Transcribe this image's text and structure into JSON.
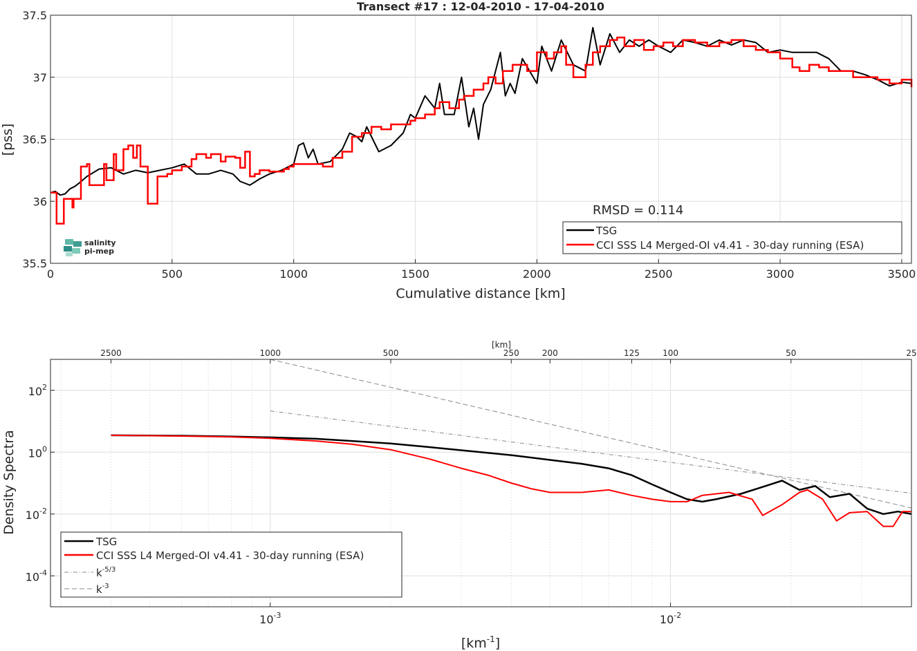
{
  "chart_data": [
    {
      "type": "line",
      "title": "Transect #17 : 12-04-2010 - 17-04-2010",
      "xlabel": "Cumulative distance [km]",
      "ylabel": "[pss]",
      "xlim": [
        0,
        3540
      ],
      "ylim": [
        35.5,
        37.5
      ],
      "xticks": [
        "0",
        "500",
        "1000",
        "1500",
        "2000",
        "2500",
        "3000",
        "3500"
      ],
      "yticks": [
        "35.5",
        "36",
        "36.5",
        "37",
        "37.5"
      ],
      "grid": true,
      "legend_position": "bottom-right",
      "annotation": "RMSD = 0.114",
      "logo": [
        "salinity",
        "pi-mep"
      ],
      "colors": {
        "TSG": "#000000",
        "CCI": "#ff0000"
      },
      "series": [
        {
          "name": "TSG",
          "x": [
            0,
            20,
            40,
            60,
            80,
            100,
            120,
            150,
            200,
            250,
            300,
            350,
            400,
            450,
            500,
            550,
            600,
            650,
            700,
            750,
            780,
            820,
            860,
            900,
            950,
            1000,
            1020,
            1040,
            1060,
            1080,
            1100,
            1150,
            1200,
            1230,
            1260,
            1280,
            1300,
            1350,
            1400,
            1450,
            1480,
            1500,
            1540,
            1580,
            1600,
            1620,
            1660,
            1690,
            1720,
            1740,
            1760,
            1780,
            1810,
            1850,
            1870,
            1890,
            1910,
            1940,
            1970,
            2000,
            2020,
            2060,
            2100,
            2150,
            2200,
            2230,
            2260,
            2300,
            2340,
            2380,
            2420,
            2460,
            2500,
            2550,
            2600,
            2650,
            2700,
            2750,
            2800,
            2850,
            2900,
            2950,
            3000,
            3050,
            3100,
            3150,
            3200,
            3250,
            3300,
            3350,
            3400,
            3450,
            3500,
            3540
          ],
          "y": [
            36.07,
            36.08,
            36.05,
            36.06,
            36.1,
            36.12,
            36.15,
            36.2,
            36.26,
            36.27,
            36.22,
            36.25,
            36.23,
            36.25,
            36.27,
            36.3,
            36.22,
            36.22,
            36.25,
            36.22,
            36.16,
            36.13,
            36.18,
            36.22,
            36.25,
            36.3,
            36.45,
            36.47,
            36.35,
            36.42,
            36.3,
            36.32,
            36.42,
            36.55,
            36.52,
            36.48,
            36.6,
            36.4,
            36.45,
            36.55,
            36.7,
            36.67,
            36.85,
            36.75,
            36.95,
            36.7,
            36.7,
            37.0,
            36.6,
            36.75,
            36.5,
            36.78,
            36.9,
            37.2,
            36.85,
            36.95,
            36.87,
            37.15,
            37.05,
            36.95,
            37.25,
            37.05,
            37.3,
            37.1,
            37.05,
            37.4,
            37.1,
            37.35,
            37.2,
            37.3,
            37.25,
            37.3,
            37.25,
            37.2,
            37.3,
            37.28,
            37.25,
            37.3,
            37.26,
            37.3,
            37.28,
            37.2,
            37.22,
            37.2,
            37.2,
            37.2,
            37.15,
            37.05,
            37.05,
            37.02,
            36.98,
            36.93,
            36.96,
            36.95
          ]
        },
        {
          "name": "CCI SSS L4 Merged-OI v4.41 - 30-day running (ESA)",
          "x": [
            0,
            20,
            25,
            50,
            55,
            90,
            95,
            120,
            125,
            150,
            160,
            200,
            220,
            230,
            260,
            270,
            280,
            300,
            320,
            340,
            355,
            370,
            380,
            400,
            420,
            440,
            480,
            500,
            540,
            580,
            600,
            640,
            660,
            700,
            720,
            740,
            760,
            780,
            800,
            820,
            840,
            860,
            900,
            940,
            960,
            980,
            1000,
            1040,
            1080,
            1120,
            1160,
            1200,
            1240,
            1280,
            1320,
            1340,
            1360,
            1400,
            1440,
            1480,
            1500,
            1540,
            1580,
            1600,
            1640,
            1680,
            1700,
            1740,
            1780,
            1800,
            1830,
            1860,
            1900,
            1930,
            1960,
            2000,
            2040,
            2070,
            2100,
            2120,
            2150,
            2180,
            2200,
            2230,
            2260,
            2300,
            2330,
            2360,
            2400,
            2440,
            2480,
            2520,
            2560,
            2600,
            2650,
            2700,
            2750,
            2800,
            2850,
            2900,
            2950,
            3000,
            3050,
            3080,
            3120,
            3160,
            3200,
            3250,
            3300,
            3350,
            3400,
            3450,
            3500,
            3540
          ],
          "y": [
            36.07,
            36.07,
            35.82,
            35.82,
            36.02,
            35.95,
            36.02,
            36.02,
            36.28,
            36.3,
            36.13,
            36.13,
            36.3,
            36.17,
            36.38,
            36.25,
            36.25,
            36.42,
            36.45,
            36.35,
            36.45,
            36.28,
            36.28,
            35.98,
            35.98,
            36.2,
            36.22,
            36.25,
            36.28,
            36.34,
            36.38,
            36.35,
            36.38,
            36.32,
            36.36,
            36.36,
            36.35,
            36.27,
            36.4,
            36.2,
            36.22,
            36.25,
            36.24,
            36.24,
            36.26,
            36.28,
            36.3,
            36.3,
            36.3,
            36.28,
            36.35,
            36.4,
            36.52,
            36.55,
            36.6,
            36.6,
            36.58,
            36.62,
            36.62,
            36.65,
            36.67,
            36.7,
            36.75,
            36.8,
            36.75,
            36.82,
            36.85,
            36.9,
            36.95,
            37.0,
            36.95,
            37.05,
            37.1,
            37.1,
            37.05,
            37.2,
            37.15,
            37.2,
            37.25,
            37.1,
            37.0,
            37.0,
            37.1,
            37.2,
            37.25,
            37.3,
            37.32,
            37.25,
            37.3,
            37.22,
            37.25,
            37.28,
            37.25,
            37.3,
            37.28,
            37.25,
            37.28,
            37.3,
            37.25,
            37.22,
            37.2,
            37.15,
            37.08,
            37.05,
            37.1,
            37.08,
            37.05,
            37.05,
            37.0,
            37.0,
            36.98,
            36.95,
            36.98,
            36.92
          ]
        }
      ]
    },
    {
      "type": "line",
      "title": "",
      "xlabel": "[km-1]",
      "ylabel": "Density Spectra",
      "x_scale": "log",
      "y_scale": "log",
      "xlim": [
        0.0002824,
        0.04
      ],
      "ylim": [
        1e-05,
        1000
      ],
      "xticks": [
        "10-3",
        "10-2"
      ],
      "yticks": [
        "10-4",
        "10-2",
        "100",
        "102"
      ],
      "top_axis_label": "[km]",
      "top_axis_ticks": [
        "2500",
        "1000",
        "500",
        "250",
        "200",
        "125",
        "100",
        "50",
        "25"
      ],
      "grid": true,
      "legend_position": "bottom-left",
      "series": [
        {
          "name": "TSG",
          "x": [
            0.0004,
            0.0006,
            0.0008,
            0.001,
            0.0013,
            0.0016,
            0.002,
            0.0025,
            0.003,
            0.004,
            0.005,
            0.006,
            0.007,
            0.008,
            0.009,
            0.01,
            0.011,
            0.012,
            0.013,
            0.015,
            0.017,
            0.019,
            0.021,
            0.023,
            0.025,
            0.028,
            0.031,
            0.034,
            0.037,
            0.04
          ],
          "y": [
            3.5,
            3.4,
            3.2,
            3.0,
            2.7,
            2.3,
            1.9,
            1.45,
            1.15,
            0.8,
            0.56,
            0.42,
            0.3,
            0.18,
            0.09,
            0.05,
            0.03,
            0.025,
            0.03,
            0.045,
            0.075,
            0.12,
            0.06,
            0.08,
            0.035,
            0.045,
            0.015,
            0.01,
            0.012,
            0.01
          ]
        },
        {
          "name": "CCI SSS L4 Merged-OI v4.41 - 30-day running (ESA)",
          "x": [
            0.0004,
            0.0006,
            0.0008,
            0.001,
            0.0013,
            0.0016,
            0.002,
            0.0025,
            0.003,
            0.0035,
            0.004,
            0.0045,
            0.005,
            0.006,
            0.007,
            0.008,
            0.009,
            0.01,
            0.011,
            0.012,
            0.014,
            0.016,
            0.017,
            0.019,
            0.021,
            0.022,
            0.024,
            0.026,
            0.028,
            0.031,
            0.034,
            0.036,
            0.038,
            0.04
          ],
          "y": [
            3.5,
            3.3,
            3.1,
            2.8,
            2.3,
            1.8,
            1.2,
            0.6,
            0.3,
            0.18,
            0.1,
            0.065,
            0.05,
            0.05,
            0.06,
            0.04,
            0.03,
            0.025,
            0.025,
            0.04,
            0.05,
            0.03,
            0.009,
            0.02,
            0.05,
            0.06,
            0.03,
            0.006,
            0.011,
            0.012,
            0.004,
            0.004,
            0.012,
            0.012
          ]
        },
        {
          "name": "k-5/3",
          "x": [
            0.001,
            0.04
          ],
          "y": [
            21.5,
            0.0468
          ]
        },
        {
          "name": "k-3",
          "x": [
            0.001,
            0.04
          ],
          "y": [
            1000,
            0.0156
          ]
        }
      ]
    }
  ]
}
